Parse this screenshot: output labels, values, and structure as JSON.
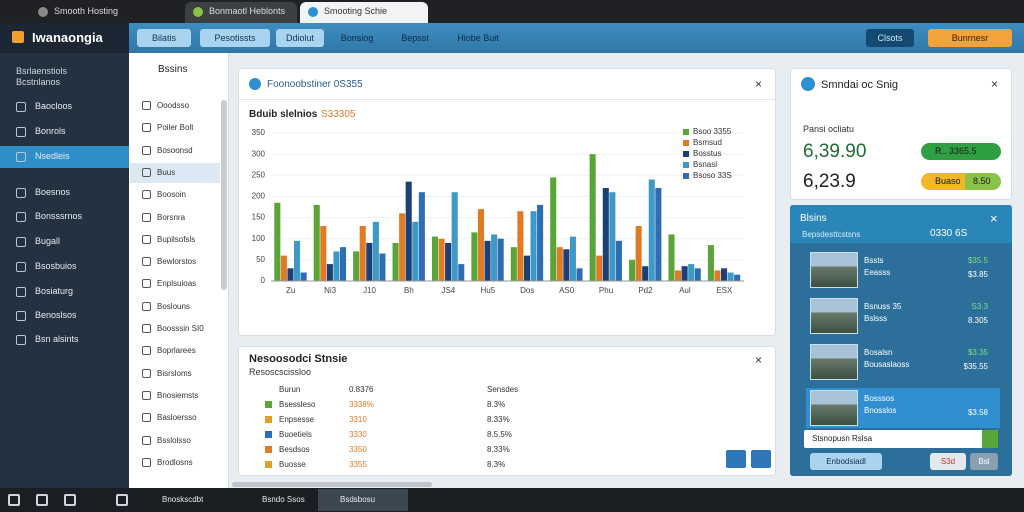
{
  "browser": {
    "tabs": [
      {
        "title": "Smooth Hosting"
      },
      {
        "title": "Bonmaotl Heblonts"
      },
      {
        "title": "Smooting Schie"
      }
    ]
  },
  "header": {
    "logo": "Iwanaongia",
    "toolbar": [
      "Bilatis",
      "Pesotissts",
      "Ddiolut",
      "Bonsiog",
      "Bepsst",
      "Hiobe Buit"
    ],
    "account": "Clsots",
    "upgrade": "Bunrnesr"
  },
  "sidebar": {
    "user": "Bsrlaenstiols",
    "user_sub": "Bcstnlanos",
    "items": [
      "Baocloos",
      "Bonrols",
      "Nsedleis",
      "Boesnos",
      "Bonsssrnos",
      "Bugall",
      "Bsosbuios",
      "Bosiaturg",
      "Benoslsos",
      "Bsn alsints"
    ],
    "active": 2
  },
  "subnav": {
    "title": "Bssins",
    "items": [
      "Ooodsso",
      "Poiler Bolt",
      "Bosoonsd",
      "Buus",
      "Boosoin",
      "Borsnra",
      "Bupilsofsls",
      "Bewlorstos",
      "Enplsuioas",
      "Boslouns",
      "Boosssin SI0",
      "Boprlarees",
      "Bisrsloms",
      "Bnosiemsts",
      "Basloersso",
      "Bsslolsso",
      "Brodlosns"
    ],
    "active": 3
  },
  "chart_panel": {
    "title": "Foonoobstiner 0S355",
    "chart": {
      "type": "bar",
      "title": "Bduib slelnios",
      "subtitle": "S33305",
      "categories": [
        "Zu",
        "Ni3",
        "J10",
        "Bh",
        "JS4",
        "Hu5",
        "Dos",
        "AS0",
        "Phu",
        "Pd2",
        "Aul",
        "ESX"
      ],
      "ylim": [
        0,
        350
      ],
      "yticks": [
        0,
        50,
        100,
        150,
        200,
        250,
        300,
        350
      ],
      "series": [
        {
          "name": "Bsoo 3355",
          "color": "#5aa537",
          "values": [
            185,
            180,
            70,
            90,
            105,
            115,
            80,
            245,
            300,
            50,
            110,
            85
          ]
        },
        {
          "name": "Bsmsud",
          "color": "#e07b25",
          "values": [
            60,
            130,
            130,
            160,
            100,
            170,
            165,
            80,
            60,
            130,
            25,
            25
          ]
        },
        {
          "name": "Bosstus",
          "color": "#1d3f78",
          "values": [
            30,
            40,
            90,
            235,
            90,
            95,
            60,
            75,
            220,
            35,
            35,
            30
          ]
        },
        {
          "name": "Bsnasl",
          "color": "#3d9ac7",
          "values": [
            95,
            70,
            140,
            140,
            210,
            110,
            165,
            105,
            210,
            240,
            40,
            20
          ]
        },
        {
          "name": "Bsoso 33S",
          "color": "#2f6db3",
          "values": [
            20,
            80,
            65,
            210,
            40,
            100,
            180,
            30,
            95,
            220,
            30,
            15
          ]
        }
      ]
    }
  },
  "table": {
    "title": "Nesoosodci Stnsie",
    "subtitle": "Resoscscissloo",
    "headers": [
      "Burun",
      "0.8376",
      "Sensdes"
    ],
    "rows": [
      {
        "color": "#5aa537",
        "cells": [
          "Bsessleso",
          "3338%",
          "8.3%"
        ]
      },
      {
        "color": "#e0a125",
        "cells": [
          "Enpsesse",
          "3310",
          "8.33%"
        ]
      },
      {
        "color": "#2f6db3",
        "cells": [
          "Buoetiels",
          "3330",
          "8.5.5%"
        ]
      },
      {
        "color": "#e07b25",
        "cells": [
          "Besdsos",
          "3350",
          "8.33%"
        ]
      },
      {
        "color": "#e0a125",
        "cells": [
          "Buosse",
          "3355",
          "8.3%"
        ]
      }
    ]
  },
  "summary": {
    "title": "Smndai oc Snig",
    "label": "Pansi ocliatu",
    "rows": [
      {
        "value": "6,39.90",
        "badge": "R.. 3365.5",
        "color": "#2ea043"
      },
      {
        "value": "6,23.9",
        "badge": "Buaso",
        "badge2": "8.50",
        "color": "#f0b72a"
      }
    ]
  },
  "list_card": {
    "title": "Blsins",
    "subtitle": "Bepsdesttcstsns",
    "total": "0330 6S",
    "items": [
      {
        "name": "Bssts",
        "sub": "Eeasss",
        "v1": "$35.5",
        "v2": "$3.85"
      },
      {
        "name": "Bsnuss 35",
        "sub": "Bslsss",
        "v1": "S3.3",
        "v2": "8.305"
      },
      {
        "name": "Bosalsn",
        "sub": "Bousaslaoss",
        "v1": "$3.35",
        "v2": "$35.55"
      },
      {
        "name": "Bosssos",
        "sub": "Bnosslos",
        "v1": "",
        "v2": "$3.58"
      }
    ],
    "input": "Stsnopusn Rslsa",
    "buttons": [
      "Enbodsiadl",
      "S3d",
      "Bsl"
    ]
  },
  "taskbar": {
    "apps": [
      "Bnoskscdbt",
      "Bsndo Ssos",
      "Bsdsbosu"
    ]
  }
}
